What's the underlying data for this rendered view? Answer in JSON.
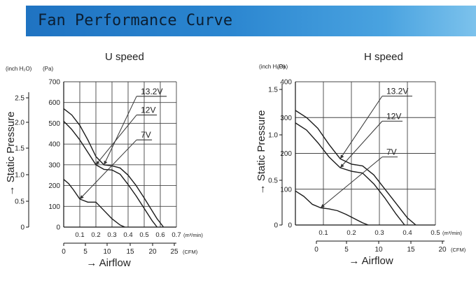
{
  "banner": {
    "title": "Fan Performance Curve"
  },
  "chart_data": [
    {
      "type": "line",
      "title": "U speed",
      "xlabel": "→ Airflow",
      "ylabel": "→ Static Pressure",
      "x_primary_unit": "(m³/min)",
      "x_secondary_unit": "(CFM)",
      "y_primary_unit": "(Pa)",
      "y_secondary_unit": "(inch H₂O)",
      "xlim": [
        0,
        0.7
      ],
      "ylim": [
        0,
        700
      ],
      "x_ticks": [
        "0.1",
        "0.2",
        "0.3",
        "0.4",
        "0.5",
        "0.6",
        "0.7"
      ],
      "y_ticks": [
        "0",
        "100",
        "200",
        "300",
        "400",
        "500",
        "600",
        "700"
      ],
      "cfm_ticks": [
        "0",
        "5",
        "10",
        "15",
        "20",
        "25"
      ],
      "inch_ticks": [
        "0",
        "0.5",
        "1.0",
        "1.5",
        "2.0",
        "2.5"
      ],
      "grid": true,
      "series": [
        {
          "name": "13.2V",
          "x": [
            0,
            0.05,
            0.1,
            0.15,
            0.2,
            0.25,
            0.3,
            0.35,
            0.4,
            0.45,
            0.5,
            0.54,
            0.58,
            0.62
          ],
          "y": [
            570,
            540,
            490,
            420,
            340,
            300,
            295,
            285,
            250,
            200,
            140,
            90,
            40,
            0
          ]
        },
        {
          "name": "12V",
          "x": [
            0,
            0.05,
            0.1,
            0.15,
            0.2,
            0.25,
            0.3,
            0.35,
            0.4,
            0.45,
            0.5,
            0.55,
            0.58
          ],
          "y": [
            510,
            470,
            420,
            360,
            300,
            278,
            275,
            255,
            205,
            150,
            90,
            30,
            0
          ]
        },
        {
          "name": "7V",
          "x": [
            0,
            0.03,
            0.06,
            0.1,
            0.15,
            0.2,
            0.25,
            0.3,
            0.35,
            0.38
          ],
          "y": [
            230,
            210,
            180,
            135,
            120,
            120,
            80,
            40,
            10,
            0
          ]
        }
      ],
      "labels": [
        {
          "text": "13.2V",
          "x": 0.47,
          "y": 630
        },
        {
          "text": "12V",
          "x": 0.47,
          "y": 540
        },
        {
          "text": "7V",
          "x": 0.47,
          "y": 420
        }
      ]
    },
    {
      "type": "line",
      "title": "H speed",
      "xlabel": "→ Airflow",
      "ylabel": "→ Static Pressure",
      "x_primary_unit": "(m³/min)",
      "x_secondary_unit": "(CFM)",
      "y_primary_unit": "(Pa)",
      "y_secondary_unit": "(inch H₂O)",
      "xlim": [
        0,
        0.5
      ],
      "ylim": [
        0,
        400
      ],
      "x_ticks": [
        "0.1",
        "0.2",
        "0.3",
        "0.4",
        "0.5"
      ],
      "y_ticks": [
        "0",
        "100",
        "200",
        "300",
        "400"
      ],
      "cfm_ticks": [
        "0",
        "5",
        "10",
        "15",
        "20"
      ],
      "inch_ticks": [
        "0",
        "0.5",
        "1.0",
        "1.5"
      ],
      "grid": true,
      "series": [
        {
          "name": "13.2V",
          "x": [
            0,
            0.04,
            0.08,
            0.12,
            0.16,
            0.2,
            0.24,
            0.28,
            0.32,
            0.36,
            0.4,
            0.43
          ],
          "y": [
            320,
            300,
            270,
            225,
            185,
            170,
            165,
            140,
            100,
            60,
            20,
            0
          ]
        },
        {
          "name": "12V",
          "x": [
            0,
            0.04,
            0.08,
            0.12,
            0.16,
            0.2,
            0.24,
            0.28,
            0.32,
            0.36,
            0.39
          ],
          "y": [
            285,
            265,
            230,
            190,
            160,
            150,
            145,
            115,
            75,
            30,
            0
          ]
        },
        {
          "name": "7V",
          "x": [
            0,
            0.03,
            0.06,
            0.09,
            0.12,
            0.15,
            0.18,
            0.21,
            0.24,
            0.26
          ],
          "y": [
            95,
            80,
            58,
            48,
            45,
            40,
            30,
            18,
            6,
            0
          ]
        }
      ],
      "labels": [
        {
          "text": "13.2V",
          "x": 0.32,
          "y": 360
        },
        {
          "text": "12V",
          "x": 0.32,
          "y": 290
        },
        {
          "text": "7V",
          "x": 0.32,
          "y": 190
        }
      ]
    }
  ]
}
